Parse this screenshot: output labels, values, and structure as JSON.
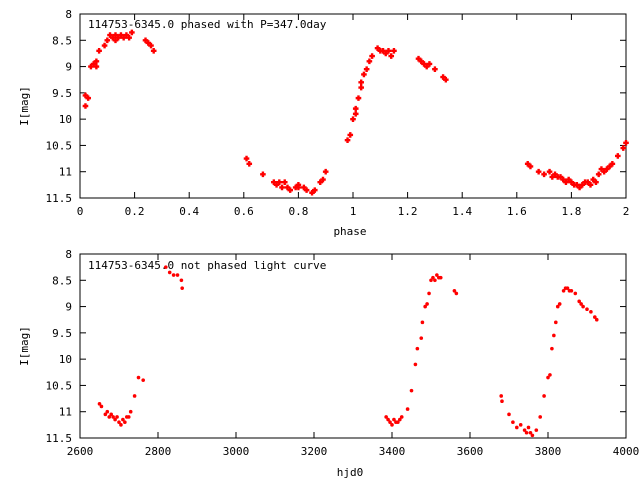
{
  "colors": {
    "series": "#ff0000",
    "axes": "#000000",
    "background": "#ffffff"
  },
  "chart_data": [
    {
      "type": "scatter",
      "title": "114753-6345.0 phased with P=347.0day",
      "xlabel": "phase",
      "ylabel": "I[mag]",
      "xlim": [
        0,
        2
      ],
      "ylim": [
        11.5,
        8
      ],
      "y_inverted": true,
      "grid": false,
      "xticks": [
        0,
        0.2,
        0.4,
        0.6,
        0.8,
        1,
        1.2,
        1.4,
        1.6,
        1.8,
        2
      ],
      "xtick_labels": [
        "0",
        "0.2",
        "0.4",
        "0.6",
        "0.8",
        "1",
        "1.2",
        "1.4",
        "1.6",
        "1.8",
        "2"
      ],
      "yticks": [
        8,
        8.5,
        9,
        9.5,
        10,
        10.5,
        11,
        11.5
      ],
      "ytick_labels": [
        "8",
        "8.5",
        "9",
        "9.5",
        "10",
        "10.5",
        "11",
        "11.5"
      ],
      "series": [
        {
          "marker": "plus",
          "x": [
            0.02,
            0.02,
            0.03,
            0.04,
            0.05,
            0.06,
            0.06,
            0.07,
            0.09,
            0.1,
            0.11,
            0.12,
            0.13,
            0.13,
            0.14,
            0.15,
            0.16,
            0.17,
            0.18,
            0.19,
            0.24,
            0.25,
            0.26,
            0.27,
            0.61,
            0.62,
            0.67,
            0.71,
            0.72,
            0.73,
            0.74,
            0.75,
            0.76,
            0.77,
            0.79,
            0.8,
            0.8,
            0.82,
            0.83,
            0.85,
            0.86,
            0.88,
            0.89,
            0.9,
            0.98,
            0.99,
            1.0,
            1.01,
            1.01,
            1.02,
            1.03,
            1.03,
            1.04,
            1.05,
            1.06,
            1.07,
            1.09,
            1.1,
            1.11,
            1.12,
            1.13,
            1.14,
            1.15,
            1.24,
            1.25,
            1.26,
            1.27,
            1.28,
            1.3,
            1.33,
            1.34,
            1.64,
            1.65,
            1.68,
            1.7,
            1.72,
            1.73,
            1.74,
            1.75,
            1.76,
            1.77,
            1.78,
            1.79,
            1.8,
            1.81,
            1.82,
            1.83,
            1.84,
            1.85,
            1.86,
            1.87,
            1.88,
            1.89,
            1.9,
            1.91,
            1.92,
            1.93,
            1.94,
            1.95,
            1.97,
            1.99,
            2.0
          ],
          "y": [
            9.55,
            9.75,
            9.6,
            9.0,
            8.95,
            8.9,
            9.0,
            8.7,
            8.6,
            8.5,
            8.4,
            8.45,
            8.4,
            8.5,
            8.45,
            8.4,
            8.45,
            8.4,
            8.45,
            8.35,
            8.5,
            8.55,
            8.6,
            8.7,
            10.75,
            10.85,
            11.05,
            11.2,
            11.25,
            11.2,
            11.3,
            11.2,
            11.3,
            11.35,
            11.3,
            11.3,
            11.25,
            11.3,
            11.35,
            11.4,
            11.35,
            11.2,
            11.15,
            11.0,
            10.4,
            10.3,
            10.0,
            9.9,
            9.8,
            9.6,
            9.4,
            9.3,
            9.15,
            9.05,
            8.9,
            8.8,
            8.65,
            8.7,
            8.7,
            8.75,
            8.7,
            8.8,
            8.7,
            8.85,
            8.9,
            8.95,
            9.0,
            8.95,
            9.05,
            9.2,
            9.25,
            10.85,
            10.9,
            11.0,
            11.05,
            11.0,
            11.1,
            11.05,
            11.1,
            11.1,
            11.15,
            11.2,
            11.15,
            11.2,
            11.25,
            11.25,
            11.3,
            11.25,
            11.2,
            11.2,
            11.25,
            11.15,
            11.2,
            11.05,
            10.95,
            11.0,
            10.95,
            10.9,
            10.85,
            10.7,
            10.55,
            10.45
          ]
        }
      ]
    },
    {
      "type": "scatter",
      "title": "114753-6345.0 not phased light curve",
      "xlabel": "hjd0",
      "ylabel": "I[mag]",
      "xlim": [
        2600,
        4000
      ],
      "ylim": [
        11.5,
        8
      ],
      "y_inverted": true,
      "grid": false,
      "xticks": [
        2600,
        2800,
        3000,
        3200,
        3400,
        3600,
        3800,
        4000
      ],
      "xtick_labels": [
        "2600",
        "2800",
        "3000",
        "3200",
        "3400",
        "3600",
        "3800",
        "4000"
      ],
      "yticks": [
        8,
        8.5,
        9,
        9.5,
        10,
        10.5,
        11,
        11.5
      ],
      "ytick_labels": [
        "8",
        "8.5",
        "9",
        "9.5",
        "10",
        "10.5",
        "11",
        "11.5"
      ],
      "series": [
        {
          "marker": "dot",
          "x": [
            2650,
            2655,
            2665,
            2670,
            2675,
            2680,
            2685,
            2690,
            2695,
            2700,
            2705,
            2710,
            2715,
            2720,
            2725,
            2730,
            2740,
            2750,
            2762,
            2820,
            2830,
            2840,
            2850,
            2860,
            2862,
            3385,
            3390,
            3395,
            3400,
            3405,
            3410,
            3415,
            3420,
            3425,
            3440,
            3450,
            3460,
            3465,
            3475,
            3478,
            3485,
            3490,
            3495,
            3500,
            3505,
            3510,
            3515,
            3520,
            3525,
            3560,
            3565,
            3680,
            3682,
            3700,
            3710,
            3720,
            3730,
            3740,
            3745,
            3750,
            3755,
            3760,
            3770,
            3780,
            3790,
            3800,
            3805,
            3810,
            3815,
            3820,
            3825,
            3830,
            3840,
            3845,
            3850,
            3855,
            3860,
            3870,
            3880,
            3885,
            3890,
            3900,
            3910,
            3920,
            3925
          ],
          "y": [
            10.85,
            10.9,
            11.05,
            11.0,
            11.1,
            11.05,
            11.1,
            11.15,
            11.1,
            11.2,
            11.25,
            11.15,
            11.2,
            11.1,
            11.1,
            11.0,
            10.7,
            10.35,
            10.4,
            8.25,
            8.35,
            8.4,
            8.4,
            8.5,
            8.65,
            11.1,
            11.15,
            11.2,
            11.25,
            11.15,
            11.2,
            11.2,
            11.15,
            11.1,
            10.95,
            10.6,
            10.1,
            9.8,
            9.6,
            9.3,
            9.0,
            8.95,
            8.75,
            8.5,
            8.45,
            8.5,
            8.4,
            8.45,
            8.45,
            8.7,
            8.75,
            10.7,
            10.8,
            11.05,
            11.2,
            11.3,
            11.25,
            11.35,
            11.4,
            11.3,
            11.4,
            11.45,
            11.35,
            11.1,
            10.7,
            10.35,
            10.3,
            9.8,
            9.55,
            9.3,
            9.0,
            8.95,
            8.7,
            8.65,
            8.65,
            8.7,
            8.7,
            8.75,
            8.9,
            8.95,
            9.0,
            9.05,
            9.1,
            9.2,
            9.25
          ]
        }
      ]
    }
  ]
}
